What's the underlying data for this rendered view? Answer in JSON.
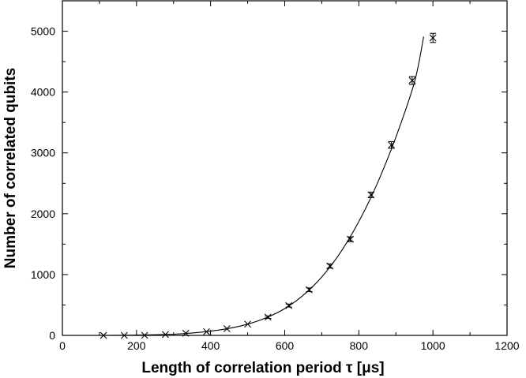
{
  "chart_data": {
    "type": "scatter",
    "title": "",
    "xlabel": "Length of correlation period  τ [μs]",
    "ylabel": "Number of correlated qubits",
    "xlim": [
      0,
      1200
    ],
    "ylim": [
      0,
      5500
    ],
    "x_ticks": [
      0,
      200,
      400,
      600,
      800,
      1000,
      1200
    ],
    "y_ticks": [
      0,
      1000,
      2000,
      3000,
      4000,
      5000
    ],
    "grid": false,
    "legend": "none",
    "series": [
      {
        "marker": "x",
        "color": "#000000",
        "points": [
          {
            "x": 111,
            "y": 0,
            "err": 5
          },
          {
            "x": 167,
            "y": 0,
            "err": 5
          },
          {
            "x": 222,
            "y": 2,
            "err": 5
          },
          {
            "x": 278,
            "y": 15,
            "err": 5
          },
          {
            "x": 333,
            "y": 35,
            "err": 5
          },
          {
            "x": 389,
            "y": 60,
            "err": 8
          },
          {
            "x": 444,
            "y": 110,
            "err": 10
          },
          {
            "x": 500,
            "y": 185,
            "err": 15
          },
          {
            "x": 555,
            "y": 300,
            "err": 20
          },
          {
            "x": 611,
            "y": 490,
            "err": 25
          },
          {
            "x": 666,
            "y": 750,
            "err": 30
          },
          {
            "x": 722,
            "y": 1140,
            "err": 35
          },
          {
            "x": 777,
            "y": 1580,
            "err": 40
          },
          {
            "x": 833,
            "y": 2310,
            "err": 45
          },
          {
            "x": 888,
            "y": 3130,
            "err": 55
          },
          {
            "x": 944,
            "y": 4190,
            "err": 65
          },
          {
            "x": 1000,
            "y": 4890,
            "err": 75
          }
        ]
      }
    ],
    "fit_curve": {
      "color": "#000000",
      "points": [
        [
          110,
          0
        ],
        [
          200,
          5
        ],
        [
          300,
          20
        ],
        [
          350,
          40
        ],
        [
          400,
          70
        ],
        [
          450,
          115
        ],
        [
          500,
          185
        ],
        [
          550,
          290
        ],
        [
          600,
          440
        ],
        [
          650,
          660
        ],
        [
          700,
          960
        ],
        [
          750,
          1360
        ],
        [
          800,
          1870
        ],
        [
          850,
          2500
        ],
        [
          900,
          3260
        ],
        [
          950,
          4160
        ],
        [
          975,
          4910
        ]
      ]
    }
  }
}
